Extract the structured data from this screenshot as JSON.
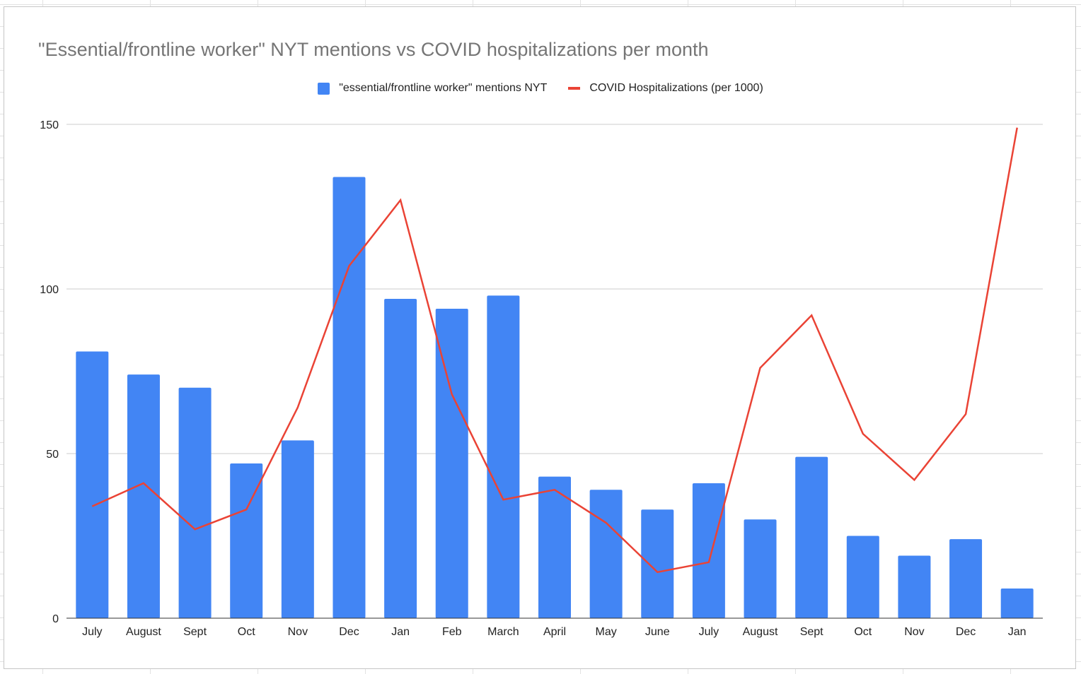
{
  "chart_data": {
    "type": "bar",
    "title": "\"Essential/frontline worker\" NYT mentions vs COVID hospitalizations per month",
    "categories": [
      "July",
      "August",
      "Sept",
      "Oct",
      "Nov",
      "Dec",
      "Jan",
      "Feb",
      "March",
      "April",
      "May",
      "June",
      "July",
      "August",
      "Sept",
      "Oct",
      "Nov",
      "Dec",
      "Jan"
    ],
    "series": [
      {
        "name": "\"essential/frontline worker\" mentions NYT",
        "type": "bar",
        "color": "#4285f4",
        "values": [
          81,
          74,
          70,
          47,
          54,
          134,
          97,
          94,
          98,
          43,
          39,
          33,
          41,
          30,
          49,
          25,
          19,
          24,
          9
        ]
      },
      {
        "name": "COVID Hospitalizations (per 1000)",
        "type": "line",
        "color": "#ea4335",
        "values": [
          34,
          41,
          27,
          33,
          64,
          107,
          127,
          68,
          36,
          39,
          29,
          14,
          17,
          76,
          92,
          56,
          42,
          62,
          149
        ]
      }
    ],
    "ylim": [
      0,
      150
    ],
    "yticks": [
      0,
      50,
      100,
      150
    ],
    "xlabel": "",
    "ylabel": "",
    "grid": true,
    "legend": "top-center"
  }
}
